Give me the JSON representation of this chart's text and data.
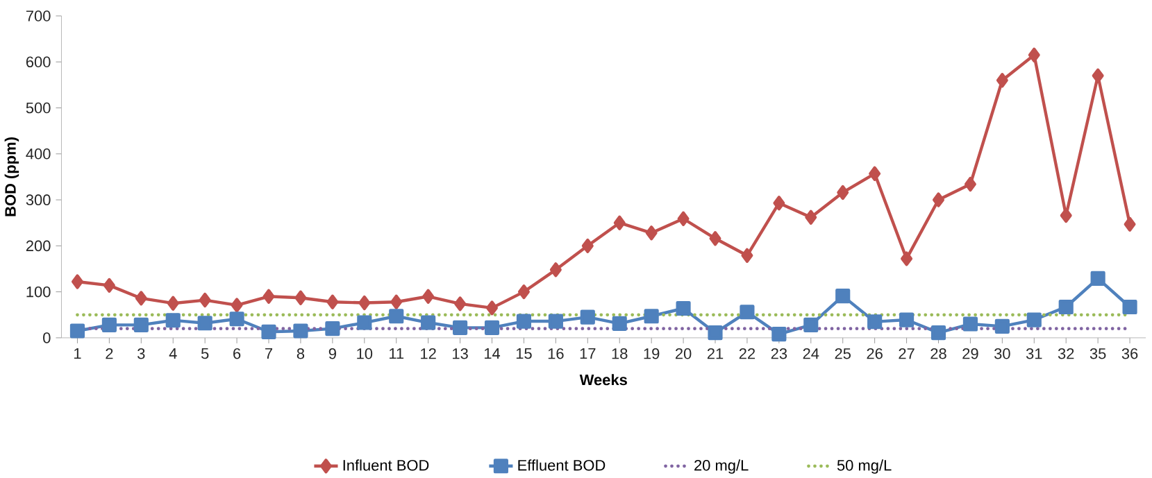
{
  "chart_data": {
    "type": "line",
    "xlabel": "Weeks",
    "ylabel": "BOD (ppm)",
    "categories": [
      "1",
      "2",
      "3",
      "4",
      "5",
      "6",
      "7",
      "8",
      "9",
      "10",
      "11",
      "12",
      "13",
      "14",
      "15",
      "16",
      "17",
      "18",
      "19",
      "20",
      "21",
      "22",
      "23",
      "24",
      "25",
      "26",
      "27",
      "28",
      "29",
      "30",
      "31",
      "32",
      "35",
      "36"
    ],
    "series": [
      {
        "name": "Influent BOD",
        "color": "#c0504d",
        "marker": "diamond",
        "values": [
          122,
          114,
          86,
          75,
          82,
          71,
          90,
          87,
          78,
          76,
          78,
          90,
          74,
          65,
          100,
          148,
          200,
          250,
          228,
          259,
          216,
          179,
          293,
          262,
          316,
          357,
          172,
          300,
          334,
          560,
          615,
          266,
          570,
          247
        ]
      },
      {
        "name": "Effluent BOD",
        "color": "#4f81bd",
        "marker": "square",
        "values": [
          15,
          28,
          28,
          38,
          32,
          41,
          13,
          15,
          20,
          33,
          47,
          33,
          22,
          22,
          36,
          36,
          45,
          31,
          47,
          64,
          11,
          56,
          8,
          28,
          91,
          35,
          39,
          11,
          30,
          25,
          39,
          67,
          129,
          67
        ]
      }
    ],
    "ref_lines": [
      {
        "axis": "y",
        "value": 20,
        "label": "20 mg/L",
        "color": "#8064a2",
        "line_style": "dotted"
      },
      {
        "axis": "y",
        "value": 50,
        "label": "50 mg/L",
        "color": "#9bbb59",
        "line_style": "dotted"
      }
    ],
    "ylim": [
      0,
      700
    ],
    "yticks": [
      0,
      100,
      200,
      300,
      400,
      500,
      600,
      700
    ],
    "grid": false,
    "legend": "bottom",
    "line_style": "solid"
  }
}
